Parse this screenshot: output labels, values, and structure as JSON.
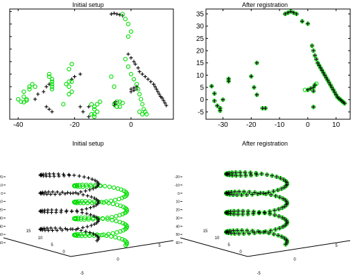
{
  "chart_data": [
    {
      "type": "scatter",
      "title": "Initial setup",
      "xlim": [
        -43,
        15
      ],
      "ylim": [
        -8,
        36
      ],
      "xticks": [
        -40,
        -20,
        0
      ],
      "marker_colors": {
        "model": "#000000",
        "data": "#00dd00"
      },
      "series": [
        {
          "marker": "plus",
          "points": [
            [
              -34,
              0
            ],
            [
              -33,
              2
            ],
            [
              -31,
              3
            ],
            [
              -30,
              5
            ],
            [
              -29,
              6
            ],
            [
              -30,
              -3
            ],
            [
              -29,
              -4
            ],
            [
              -28,
              -5
            ],
            [
              -21,
              8
            ],
            [
              -20,
              9
            ],
            [
              -18,
              10
            ],
            [
              -18,
              -3
            ],
            [
              -17,
              -5
            ],
            [
              -15,
              -7
            ],
            [
              -15,
              -3
            ],
            [
              -7,
              34
            ],
            [
              -6,
              34.3
            ],
            [
              -5,
              34
            ],
            [
              -4,
              33.7
            ],
            [
              -3,
              33.3
            ],
            [
              -1,
              18
            ],
            [
              0,
              16.5
            ],
            [
              1,
              15
            ],
            [
              1.5,
              14
            ],
            [
              2.5,
              12.5
            ],
            [
              3,
              11
            ],
            [
              4,
              10
            ],
            [
              5,
              9
            ],
            [
              6,
              8
            ],
            [
              7,
              7
            ],
            [
              8,
              6
            ],
            [
              8.5,
              5
            ],
            [
              9,
              4
            ],
            [
              9.5,
              3
            ],
            [
              10,
              2
            ],
            [
              10.5,
              1
            ],
            [
              11,
              0.5
            ],
            [
              11.5,
              -0.5
            ],
            [
              12,
              -1.5
            ],
            [
              12.5,
              -2.5
            ],
            [
              0,
              4
            ],
            [
              1,
              4.5
            ],
            [
              2,
              5
            ],
            [
              0,
              3
            ],
            [
              1,
              3.5
            ],
            [
              2,
              4
            ],
            [
              -6,
              -1.5
            ],
            [
              -5.5,
              -1
            ],
            [
              -6,
              -2.5
            ],
            [
              -5.5,
              -2
            ]
          ]
        },
        {
          "marker": "circle",
          "points": [
            [
              -40,
              0
            ],
            [
              -38,
              1
            ],
            [
              -39,
              -1
            ],
            [
              -37,
              0
            ],
            [
              -38,
              3
            ],
            [
              -36,
              5
            ],
            [
              -35,
              6
            ],
            [
              -34,
              5
            ],
            [
              -36,
              4
            ],
            [
              -38,
              -1.2
            ],
            [
              -37,
              -0.5
            ],
            [
              -28,
              4
            ],
            [
              -28,
              5
            ],
            [
              -28,
              6
            ],
            [
              -28,
              7
            ],
            [
              -28,
              8
            ],
            [
              -29,
              10
            ],
            [
              -29,
              9
            ],
            [
              -23,
              6
            ],
            [
              -22,
              7
            ],
            [
              -22,
              5
            ],
            [
              -22,
              12
            ],
            [
              -22,
              2
            ],
            [
              -21,
              7
            ],
            [
              -24,
              -2
            ],
            [
              -21,
              3
            ],
            [
              -21,
              14
            ],
            [
              -3,
              34
            ],
            [
              -1,
              25
            ],
            [
              0,
              27
            ],
            [
              -1,
              30
            ],
            [
              -2,
              32
            ],
            [
              -2,
              16
            ],
            [
              -1,
              13
            ],
            [
              0,
              10
            ],
            [
              1,
              8
            ],
            [
              2,
              6
            ],
            [
              2.5,
              4
            ],
            [
              3,
              2
            ],
            [
              3.5,
              0
            ],
            [
              4,
              -2
            ],
            [
              4.5,
              -4
            ],
            [
              5,
              -5
            ],
            [
              5.5,
              -6
            ],
            [
              3,
              -5
            ],
            [
              4,
              -6
            ],
            [
              -14,
              -6
            ],
            [
              -13,
              -6
            ],
            [
              -12,
              -5
            ],
            [
              -13,
              -4
            ],
            [
              -13,
              -3
            ],
            [
              -12,
              -2
            ],
            [
              -11,
              -1
            ],
            [
              -14,
              -2
            ],
            [
              -13,
              -7
            ],
            [
              -5,
              -1
            ],
            [
              -4,
              -1
            ],
            [
              -3,
              -1.5
            ],
            [
              -6,
              -2
            ],
            [
              -5,
              -3
            ],
            [
              -4,
              -3
            ],
            [
              -7,
              9
            ],
            [
              -6,
              5
            ]
          ]
        }
      ]
    },
    {
      "type": "scatter",
      "title": "After registration",
      "xlim": [
        -36,
        15
      ],
      "ylim": [
        -8,
        37
      ],
      "xticks": [
        -30,
        -20,
        -10,
        0,
        10
      ],
      "yticks": [
        -5,
        0,
        5,
        10,
        15,
        20,
        25,
        30,
        35
      ],
      "marker_colors": {
        "model": "#000000",
        "data": "#00dd00"
      },
      "series": [
        {
          "marker": "plus",
          "points": [
            [
              -34,
              5.5
            ],
            [
              -33,
              2.5
            ],
            [
              -33,
              -0.5
            ],
            [
              -32,
              -2.5
            ],
            [
              -31,
              -4.5
            ],
            [
              -31,
              -3.5
            ],
            [
              -30,
              0
            ],
            [
              -28,
              8.5
            ],
            [
              -28,
              7.5
            ],
            [
              -20,
              9.5
            ],
            [
              -19,
              5
            ],
            [
              -18,
              2
            ],
            [
              -18,
              15
            ],
            [
              -16,
              -3.5
            ],
            [
              -15,
              -3.5
            ],
            [
              -8,
              35
            ],
            [
              -7,
              35.5
            ],
            [
              -6,
              36
            ],
            [
              -5,
              35.5
            ],
            [
              -4,
              35
            ],
            [
              -2,
              32
            ],
            [
              0,
              31
            ],
            [
              1.5,
              22
            ],
            [
              2,
              20
            ],
            [
              2.5,
              18
            ],
            [
              3,
              16.5
            ],
            [
              3.5,
              15
            ],
            [
              4,
              14
            ],
            [
              4.5,
              13
            ],
            [
              5,
              12
            ],
            [
              5.5,
              11
            ],
            [
              6,
              10
            ],
            [
              6.5,
              9
            ],
            [
              7,
              8
            ],
            [
              7.5,
              7
            ],
            [
              8,
              6
            ],
            [
              8.5,
              5
            ],
            [
              9,
              4
            ],
            [
              9.5,
              3
            ],
            [
              10,
              2
            ],
            [
              10.5,
              1
            ],
            [
              11,
              0.5
            ],
            [
              11.5,
              0
            ],
            [
              12,
              -0.5
            ],
            [
              12.5,
              -1
            ],
            [
              13,
              -1.5
            ],
            [
              0,
              4
            ],
            [
              1,
              4.5
            ],
            [
              2,
              5
            ],
            [
              2.5,
              6
            ],
            [
              2,
              3.5
            ],
            [
              2,
              -3
            ]
          ]
        },
        {
          "marker": "circle",
          "points": [
            [
              -34,
              5.5
            ],
            [
              -33,
              2.5
            ],
            [
              -33,
              -0.5
            ],
            [
              -32,
              -2.5
            ],
            [
              -31,
              -4.5
            ],
            [
              -31,
              -3.5
            ],
            [
              -30,
              0
            ],
            [
              -28,
              8.5
            ],
            [
              -28,
              7.5
            ],
            [
              -20,
              9.5
            ],
            [
              -19,
              5
            ],
            [
              -18,
              2
            ],
            [
              -18,
              15
            ],
            [
              -16,
              -3.5
            ],
            [
              -15,
              -3.5
            ],
            [
              -8,
              35
            ],
            [
              -7,
              35.5
            ],
            [
              -6,
              36
            ],
            [
              -5,
              35.5
            ],
            [
              -4,
              35
            ],
            [
              -2,
              32
            ],
            [
              0,
              31
            ],
            [
              1.5,
              22
            ],
            [
              2,
              20
            ],
            [
              2.5,
              18
            ],
            [
              3,
              16.5
            ],
            [
              3.5,
              15
            ],
            [
              4,
              14
            ],
            [
              4.5,
              13
            ],
            [
              5,
              12
            ],
            [
              5.5,
              11
            ],
            [
              6,
              10
            ],
            [
              6.5,
              9
            ],
            [
              7,
              8
            ],
            [
              7.5,
              7
            ],
            [
              8,
              6
            ],
            [
              8.5,
              5
            ],
            [
              9,
              4
            ],
            [
              9.5,
              3
            ],
            [
              10,
              2
            ],
            [
              10.5,
              1
            ],
            [
              11,
              0.5
            ],
            [
              11.5,
              0
            ],
            [
              12,
              -0.5
            ],
            [
              12.5,
              -1
            ],
            [
              13,
              -1.5
            ],
            [
              0,
              4
            ],
            [
              1,
              4.5
            ],
            [
              2,
              5
            ],
            [
              2.5,
              6
            ],
            [
              2,
              3.5
            ],
            [
              2,
              -3
            ],
            [
              -1,
              4
            ],
            [
              3,
              6.5
            ]
          ]
        }
      ]
    },
    {
      "type": "scatter",
      "title": "Initial setup",
      "projection": "3d",
      "zticks": [
        -20,
        -10,
        0,
        10,
        20,
        30,
        40,
        50,
        60
      ],
      "yticks": [
        0,
        5,
        10,
        15
      ],
      "xticks": [
        -5,
        0,
        5
      ],
      "helix": {
        "turns": 3.8,
        "z_range": [
          -15,
          60
        ]
      },
      "marker_colors": {
        "model": "#000000",
        "data": "#00dd00"
      }
    },
    {
      "type": "scatter",
      "title": "After registration",
      "projection": "3d",
      "zticks": [
        -20,
        -10,
        0,
        10,
        20,
        30,
        40,
        50,
        60
      ],
      "yticks": [
        0,
        5,
        10,
        15
      ],
      "xticks": [
        -5,
        0,
        5
      ],
      "helix": {
        "turns": 3.8,
        "z_range": [
          -15,
          60
        ]
      },
      "marker_colors": {
        "model": "#000000",
        "data": "#00dd00"
      }
    }
  ]
}
